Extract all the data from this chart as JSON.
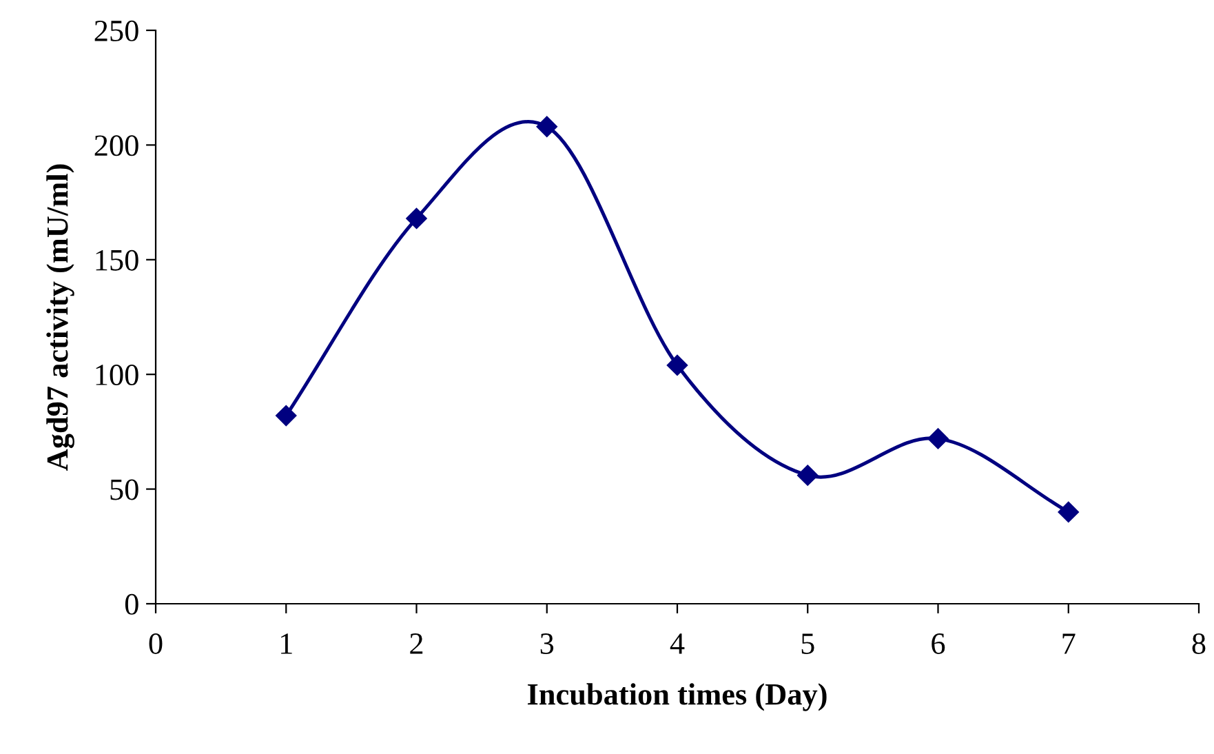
{
  "chart_data": {
    "type": "line",
    "xlabel": "Incubation times (Day)",
    "ylabel": "Agd97 activity (mU/ml)",
    "x": [
      1,
      2,
      3,
      4,
      5,
      6,
      7
    ],
    "series": [
      {
        "color": "#000080",
        "values": [
          82,
          168,
          208,
          104,
          56,
          72,
          40
        ]
      }
    ],
    "xlim": [
      0,
      8
    ],
    "xticks": [
      0,
      1,
      2,
      3,
      4,
      5,
      6,
      7,
      8
    ],
    "ylim": [
      0,
      250
    ],
    "yticks": [
      0,
      50,
      100,
      150,
      200,
      250
    ],
    "grid": false,
    "legend": false,
    "marker": "diamond",
    "line_style": "solid"
  }
}
